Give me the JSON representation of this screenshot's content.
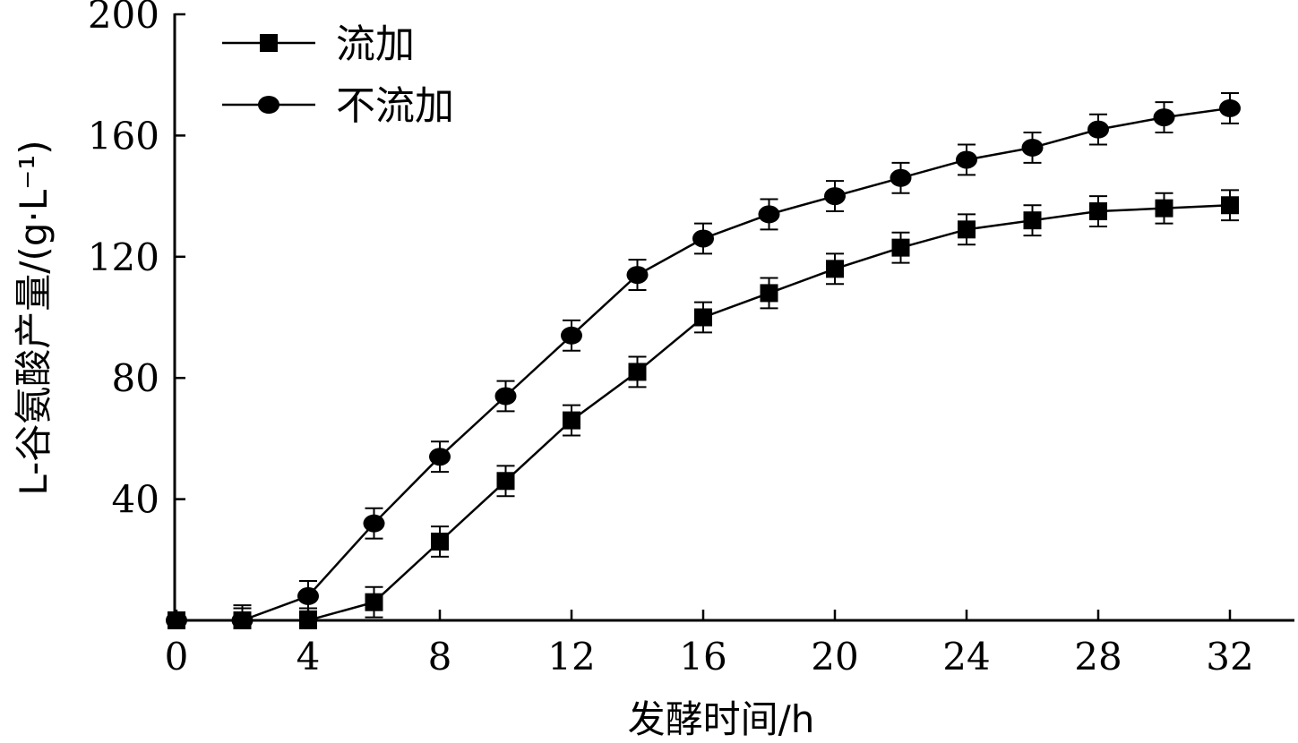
{
  "chart_data": {
    "type": "line",
    "title": "",
    "xlabel": "发酵时间/h",
    "ylabel": "L-谷氨酸产量/(g·L⁻¹)",
    "xlim": [
      0,
      34
    ],
    "ylim": [
      0,
      200
    ],
    "xticks": [
      0,
      4,
      8,
      12,
      16,
      20,
      24,
      28,
      32
    ],
    "yticks": [
      40,
      80,
      120,
      160,
      200
    ],
    "grid": false,
    "legend_position": "top-left",
    "x": [
      0,
      2,
      4,
      6,
      8,
      10,
      12,
      14,
      16,
      18,
      20,
      22,
      24,
      26,
      28,
      30,
      32
    ],
    "series": [
      {
        "name": "流加",
        "marker": "square",
        "values": [
          0,
          0,
          0,
          6,
          26,
          46,
          66,
          82,
          100,
          108,
          116,
          123,
          129,
          132,
          135,
          136,
          137
        ],
        "error": [
          2,
          4,
          4,
          5,
          5,
          5,
          5,
          5,
          5,
          5,
          5,
          5,
          5,
          5,
          5,
          5,
          5
        ]
      },
      {
        "name": "不流加",
        "marker": "circle",
        "values": [
          0,
          0,
          8,
          32,
          54,
          74,
          94,
          114,
          126,
          134,
          140,
          146,
          152,
          156,
          162,
          166,
          169
        ],
        "error": [
          2,
          5,
          5,
          5,
          5,
          5,
          5,
          5,
          5,
          5,
          5,
          5,
          5,
          5,
          5,
          5,
          5
        ]
      }
    ]
  }
}
